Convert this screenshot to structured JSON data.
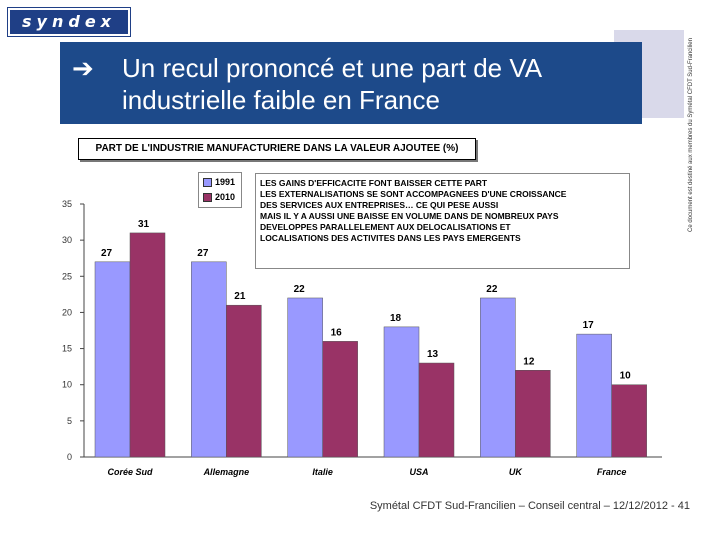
{
  "logo": {
    "text": "syndex"
  },
  "header": {
    "arrow": "➔",
    "title": "Un recul prononcé et une part de VA industrielle faible en France"
  },
  "side_note": "Ce document est destiné aux membres du Symétal CFDT Sud-Francilien",
  "footer": "Symétal CFDT Sud-Francilien – Conseil central – 12/12/2012 - 41",
  "annotation": [
    "LES GAINS D'EFFICACITE FONT BAISSER CETTE PART",
    "LES EXTERNALISATIONS SE SONT ACCOMPAGNEES D'UNE CROISSANCE",
    "DES SERVICES AUX ENTREPRISES… CE QUI PESE AUSSI",
    "MAIS IL Y A AUSSI UNE BAISSE EN VOLUME  DANS DE NOMBREUX PAYS",
    "DEVELOPPES PARALLELEMENT AUX DELOCALISATIONS ET",
    "LOCALISATIONS DES ACTIVITES DANS LES PAYS EMERGENTS"
  ],
  "chart_data": {
    "type": "bar",
    "title": "PART DE L'INDUSTRIE MANUFACTURIERE DANS LA VALEUR AJOUTEE (%)",
    "categories": [
      "Corée Sud",
      "Allemagne",
      "Italie",
      "USA",
      "UK",
      "France"
    ],
    "series": [
      {
        "name": "1991",
        "color": "#9999ff",
        "values": [
          27,
          27,
          22,
          18,
          22,
          17
        ]
      },
      {
        "name": "2010",
        "color": "#993366",
        "values": [
          31,
          21,
          16,
          13,
          12,
          10
        ]
      }
    ],
    "ylim": [
      0,
      35
    ],
    "yticks": [
      0,
      5,
      10,
      15,
      20,
      25,
      30,
      35
    ],
    "xlabel": "",
    "ylabel": "",
    "grid": false,
    "legend": "top-left"
  }
}
